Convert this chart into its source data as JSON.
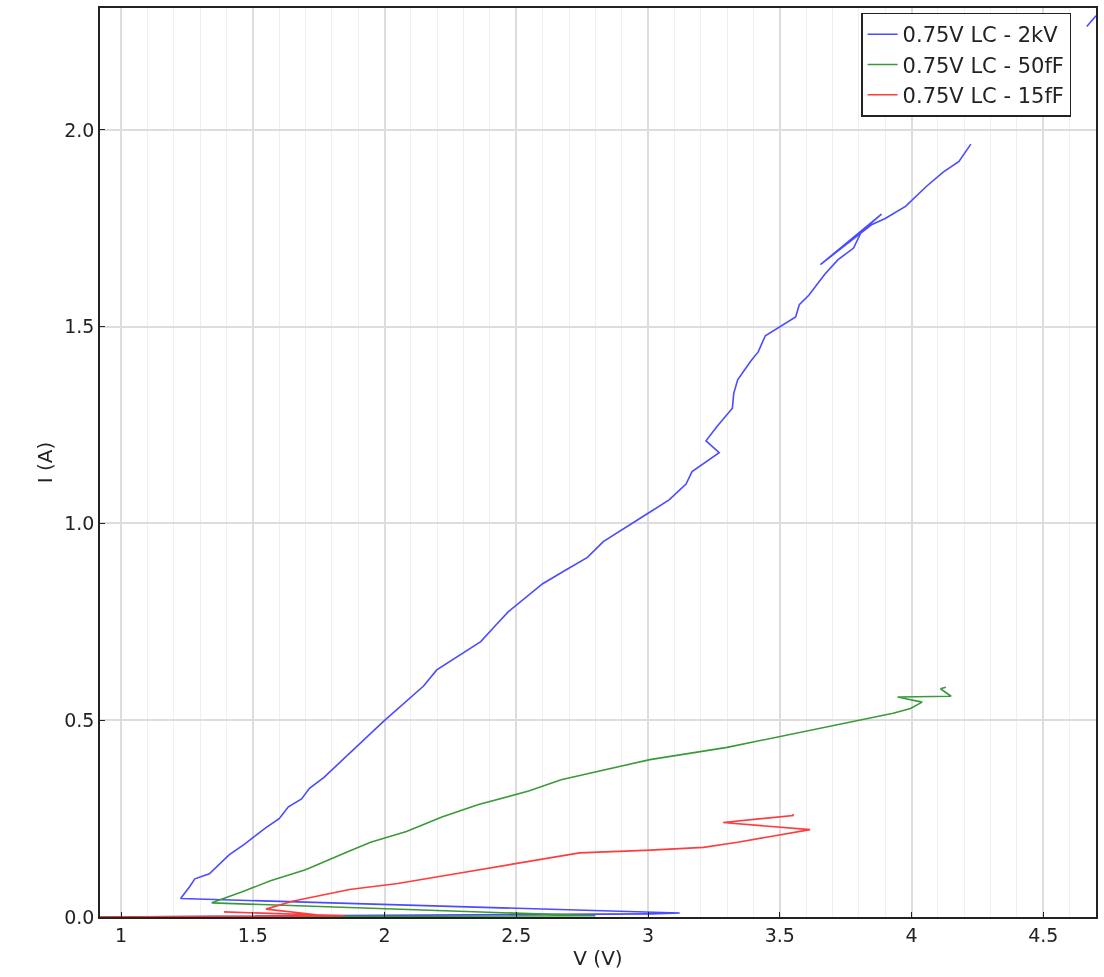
{
  "chart_data": {
    "type": "line",
    "xlabel": "V (V)",
    "ylabel": "I (A)",
    "xlim": [
      0.92,
      4.7
    ],
    "ylim": [
      0,
      2.31
    ],
    "xticks": [
      1,
      1.5,
      2,
      2.5,
      3,
      3.5,
      4,
      4.5
    ],
    "yticks": [
      {
        "value": 0,
        "label": "0.0"
      },
      0.5,
      {
        "value": 1,
        "label": "1.0"
      },
      1.5,
      {
        "value": 2,
        "label": "2.0"
      }
    ],
    "grid": true,
    "legend": "top right",
    "line_style": "solid",
    "series": [
      {
        "name": "0.75V LC - 2kV",
        "color": "#4b4bff",
        "x": [
          0.92,
          3.01,
          3.12,
          1.226,
          1.26,
          1.28,
          1.335,
          1.41,
          1.47,
          1.55,
          1.6,
          1.635,
          1.685,
          1.715,
          1.77,
          1.996,
          2.148,
          2.198,
          2.365,
          2.42,
          2.47,
          2.6,
          2.696,
          2.77,
          2.83,
          3.0,
          3.08,
          3.144,
          3.167,
          3.27,
          3.22,
          3.26,
          3.32,
          3.325,
          3.34,
          3.39,
          3.418,
          3.445,
          3.56,
          3.574,
          3.61,
          3.67,
          3.72,
          3.78,
          3.81,
          3.886,
          3.654,
          3.85,
          3.9,
          3.977,
          4.057,
          4.12,
          4.18,
          4.225,
          4.3,
          4.665,
          4.7
        ],
        "values": [
          0,
          0.008,
          0.01,
          0.047,
          0.077,
          0.097,
          0.11,
          0.158,
          0.186,
          0.227,
          0.25,
          0.28,
          0.3,
          0.327,
          0.355,
          0.497,
          0.587,
          0.628,
          0.7,
          0.74,
          0.776,
          0.847,
          0.885,
          0.914,
          0.954,
          1.026,
          1.06,
          1.1,
          1.132,
          1.18,
          1.21,
          1.245,
          1.293,
          1.33,
          1.365,
          1.413,
          1.436,
          1.477,
          1.525,
          1.556,
          1.58,
          1.633,
          1.67,
          1.7,
          1.742,
          1.786,
          1.658,
          1.76,
          1.775,
          1.806,
          1.857,
          1.893,
          1.92,
          1.964,
          null,
          2.263,
          2.29
        ]
      },
      {
        "name": "0.75V LC - 50fF",
        "color": "#3a9a3a",
        "x": [
          0.92,
          2.8,
          1.344,
          1.46,
          1.567,
          1.7,
          1.867,
          1.947,
          2.083,
          2.22,
          2.357,
          2.547,
          2.67,
          3.007,
          3.3,
          3.93,
          3.996,
          4.04,
          3.947,
          4.15,
          4.11,
          4.13
        ],
        "values": [
          0,
          0.003,
          0.036,
          0.064,
          0.092,
          0.12,
          0.168,
          0.19,
          0.217,
          0.255,
          0.286,
          0.32,
          0.349,
          0.4,
          0.431,
          0.518,
          0.53,
          0.546,
          0.559,
          0.561,
          0.58,
          0.584
        ]
      },
      {
        "name": "0.75V LC - 15fF",
        "color": "#ff3b3b",
        "x": [
          0.92,
          1.848,
          1.39,
          1.75,
          1.55,
          1.65,
          1.867,
          2.05,
          2.27,
          2.74,
          3.01,
          3.21,
          3.34,
          3.615,
          3.285,
          3.55,
          3.55
        ],
        "values": [
          0,
          0.003,
          0.013,
          0.005,
          0.02,
          0.04,
          0.07,
          0.085,
          0.11,
          0.163,
          0.17,
          0.177,
          0.19,
          0.222,
          0.24,
          0.258,
          0.262
        ]
      }
    ]
  }
}
